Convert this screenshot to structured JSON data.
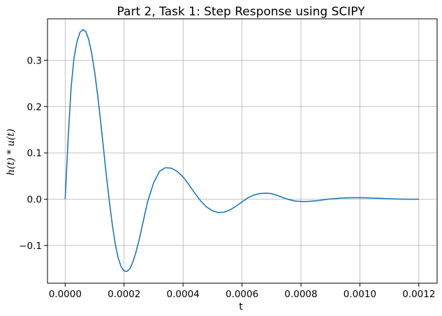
{
  "chart_data": {
    "type": "line",
    "title": "Part 2, Task 1: Step Response using SCIPY",
    "xlabel": "t",
    "ylabel": "h(t) * u(t)",
    "xlim": [
      -6e-05,
      0.001262
    ],
    "ylim": [
      -0.1815,
      0.3895
    ],
    "grid": true,
    "xticks": [
      0.0,
      0.0002,
      0.0004,
      0.0006,
      0.0008,
      0.001,
      0.0012
    ],
    "xtick_labels": [
      "0.0000",
      "0.0002",
      "0.0004",
      "0.0006",
      "0.0008",
      "0.0010",
      "0.0012"
    ],
    "yticks": [
      -0.1,
      0.0,
      0.1,
      0.2,
      0.3
    ],
    "ytick_labels": [
      "−0.1",
      "0.0",
      "0.1",
      "0.2",
      "0.3"
    ],
    "series": [
      {
        "color": "#1f77b4",
        "x": [
          0.0,
          1e-05,
          2e-05,
          3e-05,
          4e-05,
          5e-05,
          6e-05,
          7e-05,
          8e-05,
          9e-05,
          0.0001,
          0.00011,
          0.00012,
          0.00013,
          0.00014,
          0.00015,
          0.00016,
          0.00017,
          0.00018,
          0.00019,
          0.0002,
          0.00021,
          0.00022,
          0.00023,
          0.00024,
          0.00025,
          0.00026,
          0.00027,
          0.00028,
          0.0003,
          0.00032,
          0.00034,
          0.00036,
          0.00038,
          0.0004,
          0.00041,
          0.00042,
          0.00044,
          0.00046,
          0.00048,
          0.0005,
          0.00052,
          0.00054,
          0.00056,
          0.00058,
          0.0006,
          0.00062,
          0.00064,
          0.00066,
          0.00068,
          0.0007,
          0.00072,
          0.00074,
          0.00076,
          0.00078,
          0.0008,
          0.00082,
          0.00084,
          0.00086,
          0.00088,
          0.0009,
          0.00092,
          0.00094,
          0.00096,
          0.00098,
          0.001,
          0.00102,
          0.00104,
          0.00106,
          0.00108,
          0.0011,
          0.00112,
          0.00114,
          0.00116,
          0.00118,
          0.0012
        ],
        "y": [
          0.0,
          0.13,
          0.24,
          0.305,
          0.34,
          0.36,
          0.366,
          0.362,
          0.345,
          0.315,
          0.275,
          0.226,
          0.17,
          0.11,
          0.05,
          -0.005,
          -0.055,
          -0.097,
          -0.127,
          -0.146,
          -0.155,
          -0.156,
          -0.15,
          -0.135,
          -0.115,
          -0.09,
          -0.062,
          -0.033,
          -0.005,
          0.035,
          0.06,
          0.068,
          0.067,
          0.06,
          0.048,
          0.04,
          0.031,
          0.013,
          -0.004,
          -0.017,
          -0.025,
          -0.029,
          -0.028,
          -0.023,
          -0.015,
          -0.006,
          0.003,
          0.009,
          0.012,
          0.013,
          0.012,
          0.008,
          0.003,
          -0.001,
          -0.004,
          -0.005,
          -0.005,
          -0.004,
          -0.003,
          -0.001,
          0.0005,
          0.0015,
          0.0025,
          0.003,
          0.0032,
          0.0032,
          0.003,
          0.0025,
          0.002,
          0.0015,
          0.001,
          0.0005,
          0.0002,
          0.0,
          0.0,
          0.0
        ]
      }
    ]
  }
}
